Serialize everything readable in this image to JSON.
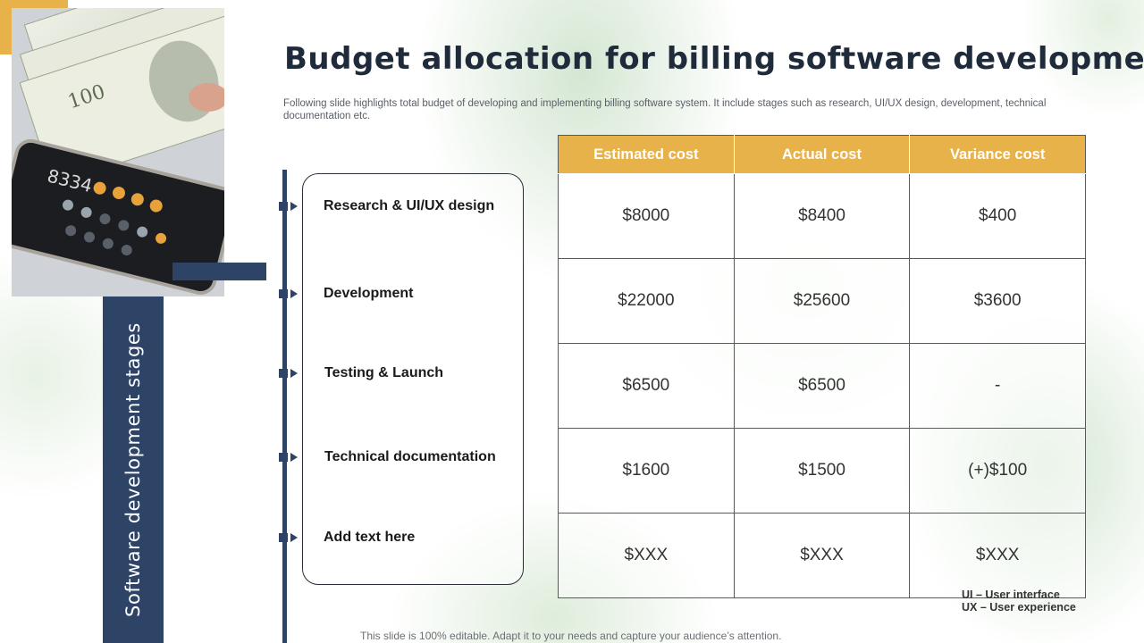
{
  "colors": {
    "accent": "#e8b24a",
    "navy": "#2e4467"
  },
  "slide": {
    "title": "Budget allocation for billing software development",
    "subtitle": "Following slide highlights total budget of developing and implementing billing software system. It include stages such as research, UI/UX design, development, technical documentation etc.",
    "side_label": "Software development stages",
    "footer": "This slide is 100% editable. Adapt it to your needs and capture your audience’s attention."
  },
  "photo": {
    "icon": "money-and-calculator-photo",
    "display_digits": "8334"
  },
  "stages": [
    {
      "label": "Research & UI/UX design"
    },
    {
      "label": "Development"
    },
    {
      "label": "Testing & Launch"
    },
    {
      "label": "Technical documentation"
    },
    {
      "label": "Add text here"
    }
  ],
  "table": {
    "headers": [
      "Estimated cost",
      "Actual cost",
      "Variance cost"
    ],
    "rows": [
      [
        "$8000",
        "$8400",
        "$400"
      ],
      [
        "$22000",
        "$25600",
        "$3600"
      ],
      [
        "$6500",
        "$6500",
        "-"
      ],
      [
        "$1600",
        "$1500",
        "(+)$100"
      ],
      [
        "$XXX",
        "$XXX",
        "$XXX"
      ]
    ]
  },
  "abbreviations": [
    "UI – User interface",
    "UX – User experience"
  ]
}
